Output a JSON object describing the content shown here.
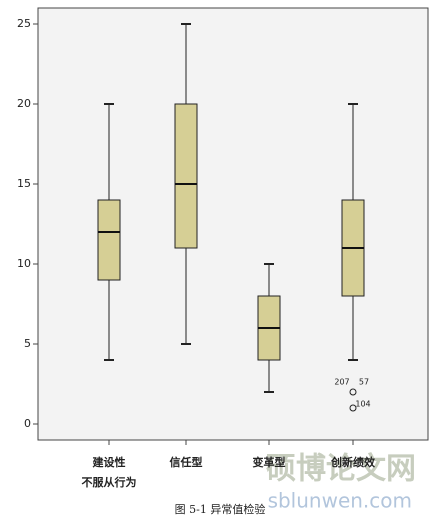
{
  "chart_data": {
    "type": "box",
    "categories": [
      [
        "建设性",
        "不服从行为"
      ],
      [
        "信任型"
      ],
      [
        "变革型"
      ],
      [
        "创新绩效"
      ]
    ],
    "boxes": [
      {
        "min": 4,
        "q1": 9,
        "median": 12,
        "q3": 14,
        "max": 20,
        "outliers": []
      },
      {
        "min": 5,
        "q1": 11,
        "median": 15,
        "q3": 20,
        "max": 25,
        "outliers": []
      },
      {
        "min": 2,
        "q1": 4,
        "median": 6,
        "q3": 8,
        "max": 10,
        "outliers": []
      },
      {
        "min": 4,
        "q1": 8,
        "median": 11,
        "q3": 14,
        "max": 20,
        "outliers": [
          {
            "value": 2,
            "labels": [
              "207",
              "57"
            ]
          },
          {
            "value": 1,
            "labels": [
              "104"
            ]
          }
        ]
      }
    ],
    "color": "#d6cf95",
    "ylim": [
      -1,
      26
    ],
    "yticks": [
      0,
      5,
      10,
      15,
      20,
      25
    ],
    "grid": false,
    "caption": "图 5-1  异常值检验",
    "watermark": [
      "硕博论文网",
      "sblunwen.com"
    ]
  }
}
